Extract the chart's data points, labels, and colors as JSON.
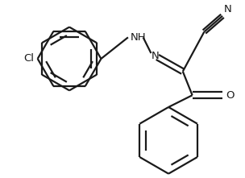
{
  "bg_color": "#ffffff",
  "line_color": "#1a1a1a",
  "atom_color": "#1a1a1a",
  "line_width": 1.6,
  "figsize": [
    3.04,
    2.21
  ],
  "dpi": 100,
  "xlim": [
    0,
    304
  ],
  "ylim": [
    0,
    221
  ]
}
